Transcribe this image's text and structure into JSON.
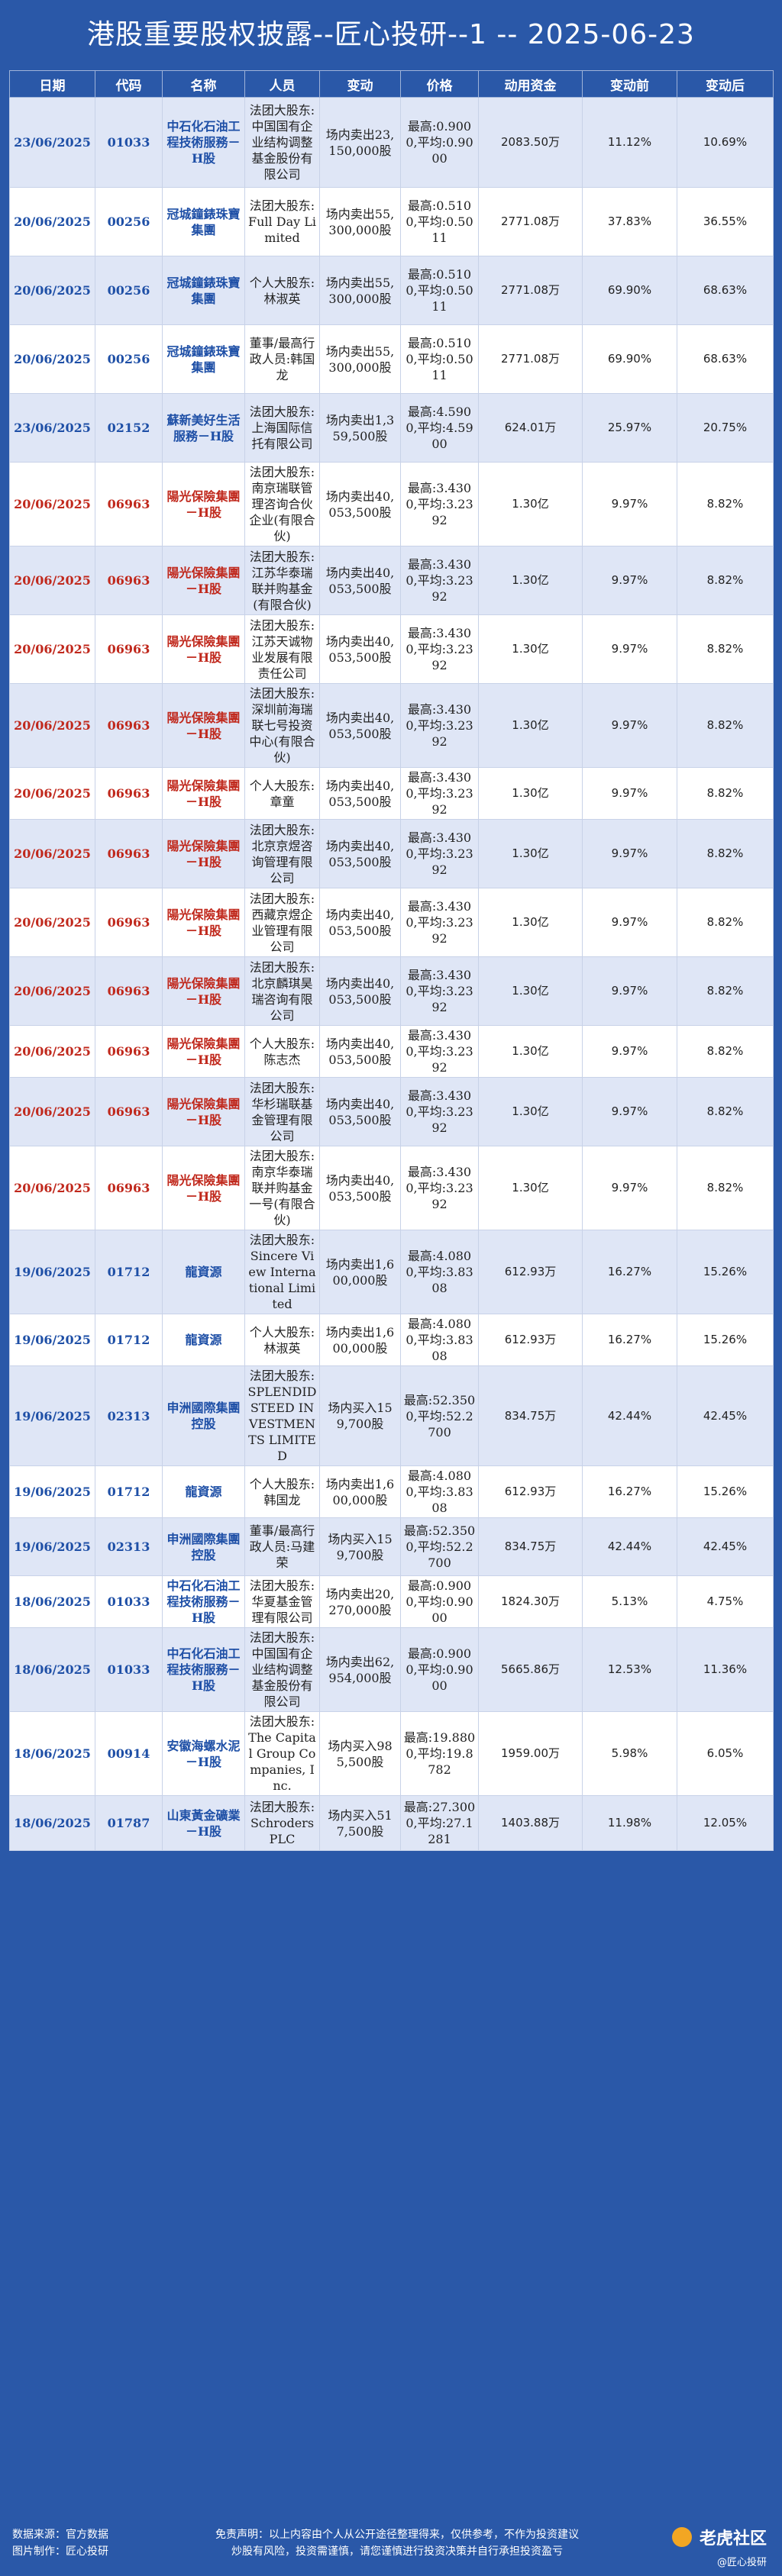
{
  "title": "港股重要股权披露--匠心投研--1 -- 2025-06-23",
  "headers": [
    "日期",
    "代码",
    "名称",
    "人员",
    "变动",
    "价格",
    "动用资金",
    "变动前",
    "变动后"
  ],
  "rows": [
    {
      "date": "23/06/2025",
      "code": "01033",
      "name": "中石化石油工程技術服務－H股",
      "person": "法团大股东:中国国有企业结构调整基金股份有限公司",
      "change": "场内卖出23,150,000股",
      "price": "最高:0.9000,平均:0.9000",
      "funds": "2083.50万",
      "before": "11.12%",
      "after": "10.69%",
      "red": false
    },
    {
      "date": "20/06/2025",
      "code": "00256",
      "name": "冠城鐘錶珠寶集團",
      "person": "法团大股东:Full Day Limited",
      "change": "场内卖出55,300,000股",
      "price": "最高:0.5100,平均:0.5011",
      "funds": "2771.08万",
      "before": "37.83%",
      "after": "36.55%",
      "red": false
    },
    {
      "date": "20/06/2025",
      "code": "00256",
      "name": "冠城鐘錶珠寶集團",
      "person": "个人大股东:林淑英",
      "change": "场内卖出55,300,000股",
      "price": "最高:0.5100,平均:0.5011",
      "funds": "2771.08万",
      "before": "69.90%",
      "after": "68.63%",
      "red": false
    },
    {
      "date": "20/06/2025",
      "code": "00256",
      "name": "冠城鐘錶珠寶集團",
      "person": "董事/最高行政人员:韩国龙",
      "change": "场内卖出55,300,000股",
      "price": "最高:0.5100,平均:0.5011",
      "funds": "2771.08万",
      "before": "69.90%",
      "after": "68.63%",
      "red": false
    },
    {
      "date": "23/06/2025",
      "code": "02152",
      "name": "蘇新美好生活服務－H股",
      "person": "法团大股东:上海国际信托有限公司",
      "change": "场内卖出1,359,500股",
      "price": "最高:4.5900,平均:4.5900",
      "funds": "624.01万",
      "before": "25.97%",
      "after": "20.75%",
      "red": false
    },
    {
      "date": "20/06/2025",
      "code": "06963",
      "name": "陽光保險集團－H股",
      "person": "法团大股东:南京瑞联管理咨询合伙企业(有限合伙)",
      "change": "场内卖出40,053,500股",
      "price": "最高:3.4300,平均:3.2392",
      "funds": "1.30亿",
      "before": "9.97%",
      "after": "8.82%",
      "red": true
    },
    {
      "date": "20/06/2025",
      "code": "06963",
      "name": "陽光保險集團－H股",
      "person": "法团大股东:江苏华泰瑞联并购基金(有限合伙)",
      "change": "场内卖出40,053,500股",
      "price": "最高:3.4300,平均:3.2392",
      "funds": "1.30亿",
      "before": "9.97%",
      "after": "8.82%",
      "red": true
    },
    {
      "date": "20/06/2025",
      "code": "06963",
      "name": "陽光保險集團－H股",
      "person": "法团大股东:江苏天诚物业发展有限责任公司",
      "change": "场内卖出40,053,500股",
      "price": "最高:3.4300,平均:3.2392",
      "funds": "1.30亿",
      "before": "9.97%",
      "after": "8.82%",
      "red": true
    },
    {
      "date": "20/06/2025",
      "code": "06963",
      "name": "陽光保險集團－H股",
      "person": "法团大股东:深圳前海瑞联七号投资中心(有限合伙)",
      "change": "场内卖出40,053,500股",
      "price": "最高:3.4300,平均:3.2392",
      "funds": "1.30亿",
      "before": "9.97%",
      "after": "8.82%",
      "red": true
    },
    {
      "date": "20/06/2025",
      "code": "06963",
      "name": "陽光保險集團－H股",
      "person": "个人大股东:章童",
      "change": "场内卖出40,053,500股",
      "price": "最高:3.4300,平均:3.2392",
      "funds": "1.30亿",
      "before": "9.97%",
      "after": "8.82%",
      "red": true
    },
    {
      "date": "20/06/2025",
      "code": "06963",
      "name": "陽光保險集團－H股",
      "person": "法团大股东:北京京煜咨询管理有限公司",
      "change": "场内卖出40,053,500股",
      "price": "最高:3.4300,平均:3.2392",
      "funds": "1.30亿",
      "before": "9.97%",
      "after": "8.82%",
      "red": true
    },
    {
      "date": "20/06/2025",
      "code": "06963",
      "name": "陽光保險集團－H股",
      "person": "法团大股东:西藏京煜企业管理有限公司",
      "change": "场内卖出40,053,500股",
      "price": "最高:3.4300,平均:3.2392",
      "funds": "1.30亿",
      "before": "9.97%",
      "after": "8.82%",
      "red": true
    },
    {
      "date": "20/06/2025",
      "code": "06963",
      "name": "陽光保險集團－H股",
      "person": "法团大股东:北京麟琪昊瑞咨询有限公司",
      "change": "场内卖出40,053,500股",
      "price": "最高:3.4300,平均:3.2392",
      "funds": "1.30亿",
      "before": "9.97%",
      "after": "8.82%",
      "red": true
    },
    {
      "date": "20/06/2025",
      "code": "06963",
      "name": "陽光保險集團－H股",
      "person": "个人大股东:陈志杰",
      "change": "场内卖出40,053,500股",
      "price": "最高:3.4300,平均:3.2392",
      "funds": "1.30亿",
      "before": "9.97%",
      "after": "8.82%",
      "red": true
    },
    {
      "date": "20/06/2025",
      "code": "06963",
      "name": "陽光保險集團－H股",
      "person": "法团大股东:华杉瑞联基金管理有限公司",
      "change": "场内卖出40,053,500股",
      "price": "最高:3.4300,平均:3.2392",
      "funds": "1.30亿",
      "before": "9.97%",
      "after": "8.82%",
      "red": true
    },
    {
      "date": "20/06/2025",
      "code": "06963",
      "name": "陽光保險集團－H股",
      "person": "法团大股东:南京华泰瑞联并购基金一号(有限合伙)",
      "change": "场内卖出40,053,500股",
      "price": "最高:3.4300,平均:3.2392",
      "funds": "1.30亿",
      "before": "9.97%",
      "after": "8.82%",
      "red": true
    },
    {
      "date": "19/06/2025",
      "code": "01712",
      "name": "龍資源",
      "person": "法团大股东:Sincere View International Limited",
      "change": "场内卖出1,600,000股",
      "price": "最高:4.0800,平均:3.8308",
      "funds": "612.93万",
      "before": "16.27%",
      "after": "15.26%",
      "red": false
    },
    {
      "date": "19/06/2025",
      "code": "01712",
      "name": "龍資源",
      "person": "个人大股东:林淑英",
      "change": "场内卖出1,600,000股",
      "price": "最高:4.0800,平均:3.8308",
      "funds": "612.93万",
      "before": "16.27%",
      "after": "15.26%",
      "red": false
    },
    {
      "date": "19/06/2025",
      "code": "02313",
      "name": "申洲國際集團控股",
      "person": "法团大股东:SPLENDID STEED INVESTMENTS LIMITED",
      "change": "场内买入159,700股",
      "price": "最高:52.3500,平均:52.2700",
      "funds": "834.75万",
      "before": "42.44%",
      "after": "42.45%",
      "red": false
    },
    {
      "date": "19/06/2025",
      "code": "01712",
      "name": "龍資源",
      "person": "个人大股东:韩国龙",
      "change": "场内卖出1,600,000股",
      "price": "最高:4.0800,平均:3.8308",
      "funds": "612.93万",
      "before": "16.27%",
      "after": "15.26%",
      "red": false
    },
    {
      "date": "19/06/2025",
      "code": "02313",
      "name": "申洲國際集團控股",
      "person": "董事/最高行政人员:马建荣",
      "change": "场内买入159,700股",
      "price": "最高:52.3500,平均:52.2700",
      "funds": "834.75万",
      "before": "42.44%",
      "after": "42.45%",
      "red": false
    },
    {
      "date": "18/06/2025",
      "code": "01033",
      "name": "中石化石油工程技術服務－H股",
      "person": "法团大股东:华夏基金管理有限公司",
      "change": "场内卖出20,270,000股",
      "price": "最高:0.9000,平均:0.9000",
      "funds": "1824.30万",
      "before": "5.13%",
      "after": "4.75%",
      "red": false
    },
    {
      "date": "18/06/2025",
      "code": "01033",
      "name": "中石化石油工程技術服務－H股",
      "person": "法团大股东:中国国有企业结构调整基金股份有限公司",
      "change": "场内卖出62,954,000股",
      "price": "最高:0.9000,平均:0.9000",
      "funds": "5665.86万",
      "before": "12.53%",
      "after": "11.36%",
      "red": false
    },
    {
      "date": "18/06/2025",
      "code": "00914",
      "name": "安徽海螺水泥－H股",
      "person": "法团大股东:The Capital Group Companies, Inc.",
      "change": "场内买入985,500股",
      "price": "最高:19.8800,平均:19.8782",
      "funds": "1959.00万",
      "before": "5.98%",
      "after": "6.05%",
      "red": false
    },
    {
      "date": "18/06/2025",
      "code": "01787",
      "name": "山東黃金礦業－H股",
      "person": "法团大股东:Schroders PLC",
      "change": "场内买入517,500股",
      "price": "最高:27.3000,平均:27.1281",
      "funds": "1403.88万",
      "before": "11.98%",
      "after": "12.05%",
      "red": false
    }
  ],
  "footer": {
    "source": "数据来源：官方数据",
    "maker": "图片制作：匠心投研",
    "disclaimer1": "免责声明：以上内容由个人从公开途径整理得来，仅供参考，不作为投资建议",
    "disclaimer2": "炒股有风险，投资需谨慎，请您谨慎进行投资决策并自行承担投资盈亏",
    "logo": "老虎社区",
    "logo_sub": "@匠心投研"
  }
}
